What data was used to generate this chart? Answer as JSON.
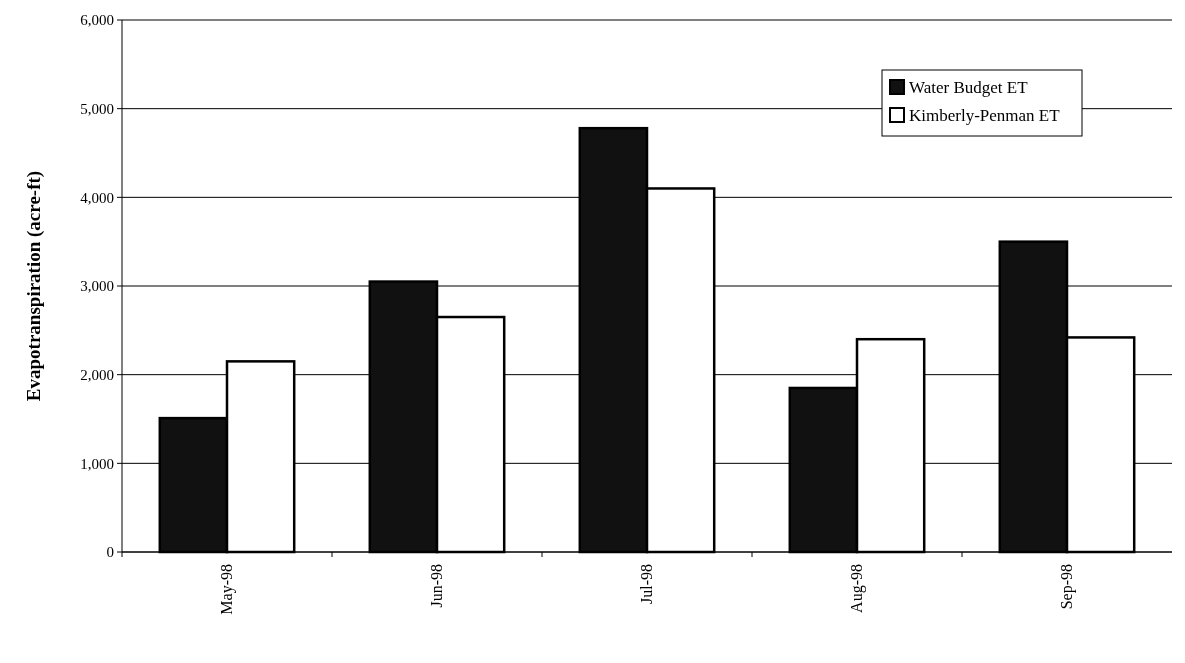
{
  "chart_data": {
    "type": "bar",
    "ylabel": "Evapotranspiration (acre-ft)",
    "categories": [
      "May-98",
      "Jun-98",
      "Jul-98",
      "Aug-98",
      "Sep-98"
    ],
    "series": [
      {
        "name": "Water Budget ET",
        "color": "#111111",
        "values": [
          1510,
          3050,
          4780,
          1850,
          3500
        ]
      },
      {
        "name": "Kimberly-Penman ET",
        "color": "#ffffff",
        "values": [
          2150,
          2650,
          4100,
          2400,
          2420
        ]
      }
    ],
    "ylim": [
      0,
      6000
    ],
    "yticks": [
      {
        "value": 0,
        "label": "0"
      },
      {
        "value": 1000,
        "label": "1,000"
      },
      {
        "value": 2000,
        "label": "2,000"
      },
      {
        "value": 3000,
        "label": "3,000"
      },
      {
        "value": 4000,
        "label": "4,000"
      },
      {
        "value": 5000,
        "label": "5,000"
      },
      {
        "value": 6000,
        "label": "6,000"
      }
    ],
    "grid": "y",
    "legend": "top right"
  }
}
